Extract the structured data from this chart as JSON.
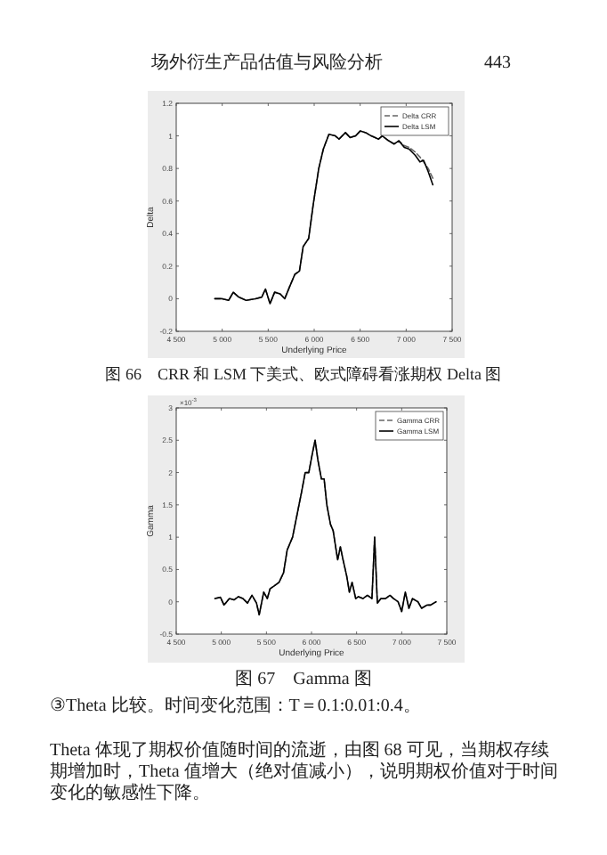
{
  "chart_data": [
    {
      "type": "line",
      "xlabel": "Underlying Price",
      "ylabel": "Delta",
      "legend": "top right",
      "xlim": [
        4500,
        7500
      ],
      "xticks": [
        {
          "value": 4500,
          "label": "4 500"
        },
        {
          "value": 5000,
          "label": "5 000"
        },
        {
          "value": 5500,
          "label": "5 500"
        },
        {
          "value": 6000,
          "label": "6 000"
        },
        {
          "value": 6500,
          "label": "6 500"
        },
        {
          "value": 7000,
          "label": "7 000"
        },
        {
          "value": 7500,
          "label": "7 500"
        }
      ],
      "ylim": [
        -0.2,
        1.2
      ],
      "yticks": [
        -0.2,
        0,
        0.2,
        0.4,
        0.6,
        0.8,
        1,
        1.2
      ],
      "x": [
        4920,
        5000,
        5070,
        5120,
        5180,
        5260,
        5360,
        5430,
        5470,
        5520,
        5570,
        5630,
        5680,
        5730,
        5790,
        5840,
        5880,
        5940,
        5990,
        6050,
        6100,
        6160,
        6230,
        6270,
        6340,
        6390,
        6450,
        6500,
        6560,
        6620,
        6700,
        6740,
        6810,
        6870,
        6920,
        6980,
        7030,
        7100,
        7150,
        7190,
        7240,
        7290
      ],
      "series": [
        {
          "name": "Delta CRR",
          "color": "#666666",
          "line_style": "dashed",
          "values": [
            0,
            0,
            -0.01,
            0.04,
            0.01,
            -0.01,
            0,
            0.01,
            0.06,
            -0.03,
            0.04,
            0.03,
            0,
            0.07,
            0.15,
            0.17,
            0.32,
            0.37,
            0.58,
            0.8,
            0.92,
            1.01,
            1,
            0.98,
            1.02,
            0.99,
            1,
            1.03,
            1.02,
            1,
            0.98,
            1,
            0.97,
            0.95,
            0.97,
            0.94,
            0.93,
            0.9,
            0.87,
            0.84,
            0.8,
            0.74
          ]
        },
        {
          "name": "Delta LSM",
          "color": "#000000",
          "line_style": "solid",
          "values": [
            0,
            0,
            -0.01,
            0.04,
            0.01,
            -0.01,
            0,
            0.01,
            0.06,
            -0.03,
            0.04,
            0.03,
            0,
            0.07,
            0.15,
            0.17,
            0.32,
            0.37,
            0.58,
            0.8,
            0.92,
            1.01,
            1,
            0.98,
            1.02,
            0.99,
            1,
            1.03,
            1.02,
            1,
            0.98,
            1,
            0.97,
            0.95,
            0.97,
            0.93,
            0.92,
            0.88,
            0.84,
            0.85,
            0.78,
            0.7
          ]
        }
      ],
      "annotations": [
        "场外衍生产品估值与风险分析",
        "443",
        "图 66　CRR 和 LSM 下美式、欧式障碍看涨期权 Delta 图"
      ]
    },
    {
      "type": "line",
      "xlabel": "Underlying Price",
      "ylabel": "Gamma",
      "legend": "top right",
      "xlim": [
        4500,
        7500
      ],
      "xticks": [
        {
          "value": 4500,
          "label": "4 500"
        },
        {
          "value": 5000,
          "label": "5 000"
        },
        {
          "value": 5500,
          "label": "5 500"
        },
        {
          "value": 6000,
          "label": "6 000"
        },
        {
          "value": 6500,
          "label": "6 500"
        },
        {
          "value": 7000,
          "label": "7 000"
        },
        {
          "value": 7500,
          "label": "7 500"
        }
      ],
      "ylim": [
        -0.5,
        3
      ],
      "yticks": [
        -0.5,
        0,
        0.5,
        1,
        1.5,
        2,
        2.5,
        3
      ],
      "x": [
        4930,
        4990,
        5030,
        5090,
        5140,
        5190,
        5240,
        5290,
        5340,
        5390,
        5420,
        5470,
        5510,
        5540,
        5590,
        5640,
        5690,
        5730,
        5790,
        5840,
        5890,
        5930,
        5970,
        6010,
        6040,
        6070,
        6110,
        6140,
        6170,
        6210,
        6240,
        6290,
        6320,
        6350,
        6390,
        6420,
        6450,
        6490,
        6520,
        6570,
        6620,
        6670,
        6700,
        6730,
        6770,
        6820,
        6870,
        6910,
        6960,
        7000,
        7040,
        7080,
        7120,
        7180,
        7220,
        7280,
        7320,
        7380
      ],
      "series": [
        {
          "name": "Gamma CRR",
          "color": "#666666",
          "line_style": "dashed",
          "values": [
            0.05,
            0.07,
            -0.05,
            0.05,
            0.03,
            0.08,
            0.05,
            -0.02,
            0.1,
            -0.02,
            -0.2,
            0.15,
            0.05,
            0.2,
            0.25,
            0.3,
            0.45,
            0.8,
            1,
            1.35,
            1.7,
            2,
            2,
            2.3,
            2.5,
            2.2,
            1.9,
            1.9,
            1.5,
            1.2,
            1.1,
            0.65,
            0.85,
            0.65,
            0.4,
            0.15,
            0.3,
            0.05,
            0.08,
            0.05,
            0.1,
            0.05,
            1,
            -0.02,
            0.05,
            0.05,
            0.1,
            0.05,
            0,
            -0.15,
            0.15,
            -0.1,
            0.05,
            0,
            -0.1,
            -0.05,
            -0.05,
            0
          ]
        },
        {
          "name": "Gamma LSM",
          "color": "#000000",
          "line_style": "solid",
          "values": [
            0.05,
            0.07,
            -0.05,
            0.05,
            0.03,
            0.08,
            0.05,
            -0.02,
            0.1,
            -0.02,
            -0.2,
            0.15,
            0.05,
            0.2,
            0.25,
            0.3,
            0.45,
            0.8,
            1,
            1.35,
            1.7,
            2,
            2,
            2.3,
            2.5,
            2.2,
            1.9,
            1.9,
            1.5,
            1.2,
            1.1,
            0.65,
            0.85,
            0.65,
            0.4,
            0.15,
            0.3,
            0.05,
            0.08,
            0.05,
            0.1,
            0.05,
            1,
            -0.02,
            0.05,
            0.05,
            0.1,
            0.05,
            0,
            -0.15,
            0.15,
            -0.1,
            0.05,
            0,
            -0.1,
            -0.05,
            -0.05,
            0
          ]
        }
      ],
      "annotations": [
        "×10$^{-3}$",
        "图 67　Gamma 图",
        "③Theta 比较。时间变化范围：T＝0.1:0.01:0.4。",
        "Theta 体现了期权价值随时间的流逝，由图 68 可见，当期权存续期增加时，Theta 值增大（绝对值减小），说明期权价值对于时间变化的敏感性下降。"
      ]
    }
  ]
}
